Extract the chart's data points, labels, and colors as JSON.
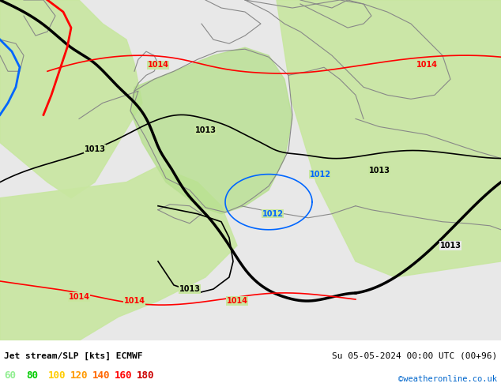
{
  "title_left": "Jet stream/SLP [kts] ECMWF",
  "title_right": "Su 05-05-2024 00:00 UTC (00+96)",
  "credit": "©weatheronline.co.uk",
  "legend_values": [
    "60",
    "80",
    "100",
    "120",
    "140",
    "160",
    "180"
  ],
  "legend_colors": [
    "#90ee90",
    "#00cc00",
    "#ffcc00",
    "#ff9900",
    "#ff6600",
    "#ff0000",
    "#cc0000"
  ],
  "bg_color_land": "#c8e6a0",
  "bg_color_sea": "#e8e8e8",
  "bg_color_germany": "#b8e090",
  "isobar_color_red": "#ff0000",
  "isobar_color_black": "#000000",
  "isobar_color_blue": "#0066ff",
  "bottom_bar_color": "#c8e6a0",
  "figsize": [
    6.34,
    4.9
  ],
  "dpi": 100
}
